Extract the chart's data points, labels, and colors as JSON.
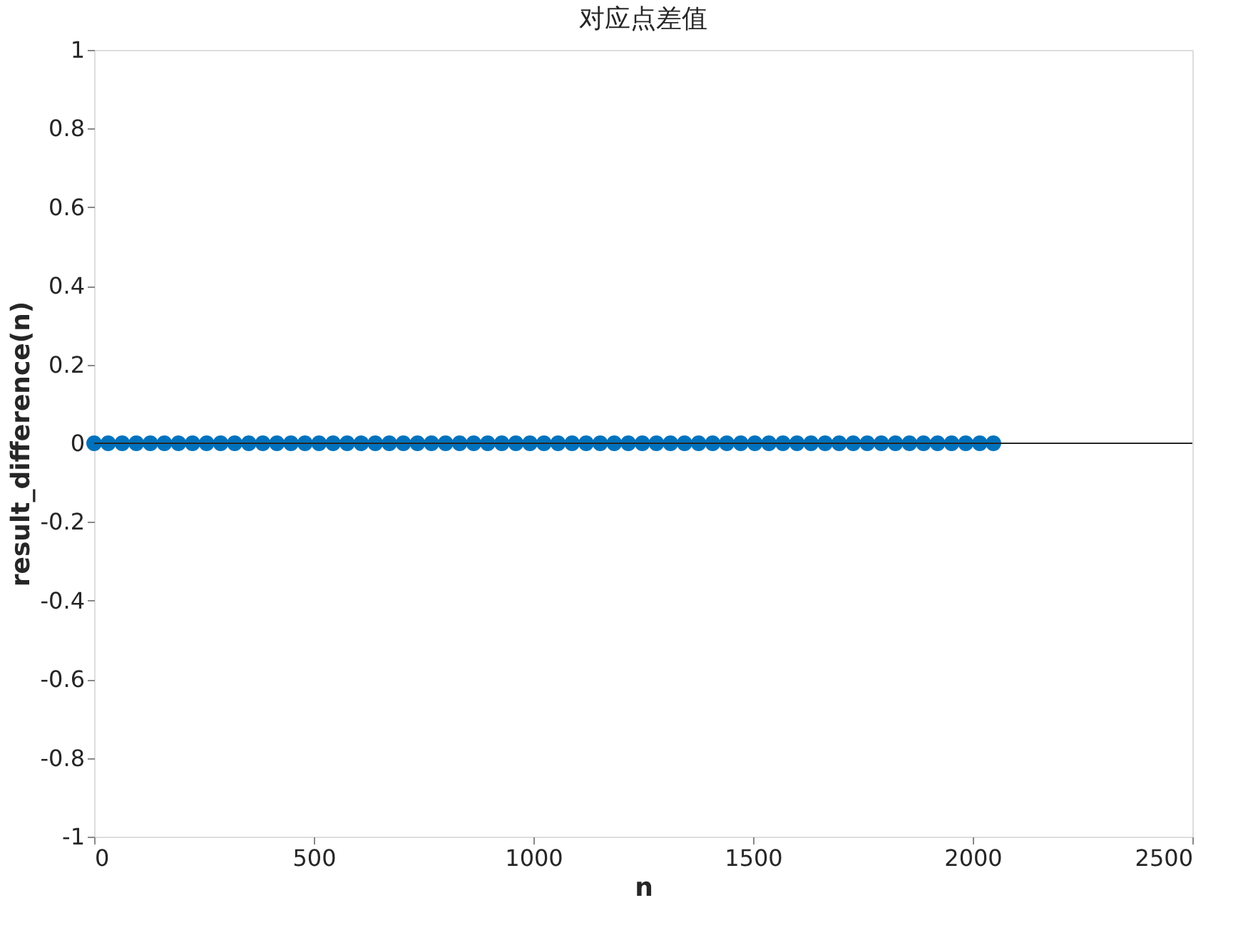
{
  "chart_data": {
    "type": "scatter",
    "title": "对应点差值",
    "xlabel": "n",
    "ylabel": "result_difference(n)",
    "x": [
      0,
      32,
      64,
      96,
      128,
      160,
      192,
      224,
      256,
      288,
      320,
      352,
      384,
      416,
      448,
      480,
      512,
      544,
      576,
      608,
      640,
      672,
      704,
      736,
      768,
      800,
      832,
      864,
      896,
      928,
      960,
      992,
      1024,
      1056,
      1088,
      1120,
      1152,
      1184,
      1216,
      1248,
      1280,
      1312,
      1344,
      1376,
      1408,
      1440,
      1472,
      1504,
      1536,
      1568,
      1600,
      1632,
      1664,
      1696,
      1728,
      1760,
      1792,
      1824,
      1856,
      1888,
      1920,
      1952,
      1984,
      2016,
      2047
    ],
    "series": [
      {
        "color": "#0072bd",
        "values": [
          0,
          0,
          0,
          0,
          0,
          0,
          0,
          0,
          0,
          0,
          0,
          0,
          0,
          0,
          0,
          0,
          0,
          0,
          0,
          0,
          0,
          0,
          0,
          0,
          0,
          0,
          0,
          0,
          0,
          0,
          0,
          0,
          0,
          0,
          0,
          0,
          0,
          0,
          0,
          0,
          0,
          0,
          0,
          0,
          0,
          0,
          0,
          0,
          0,
          0,
          0,
          0,
          0,
          0,
          0,
          0,
          0,
          0,
          0,
          0,
          0,
          0,
          0,
          0,
          0
        ]
      }
    ],
    "marker": "circle",
    "xlim": [
      0,
      2500
    ],
    "xticks": [
      0,
      500,
      1000,
      1500,
      2000,
      2500
    ],
    "ylim": [
      -1,
      1
    ],
    "yticks": [
      -1,
      -0.8,
      -0.6,
      -0.4,
      -0.2,
      0,
      0.2,
      0.4,
      0.6,
      0.8,
      1
    ],
    "ref_lines": [
      {
        "axis": "y",
        "value": 0,
        "color": "#262626"
      }
    ],
    "grid": false
  }
}
